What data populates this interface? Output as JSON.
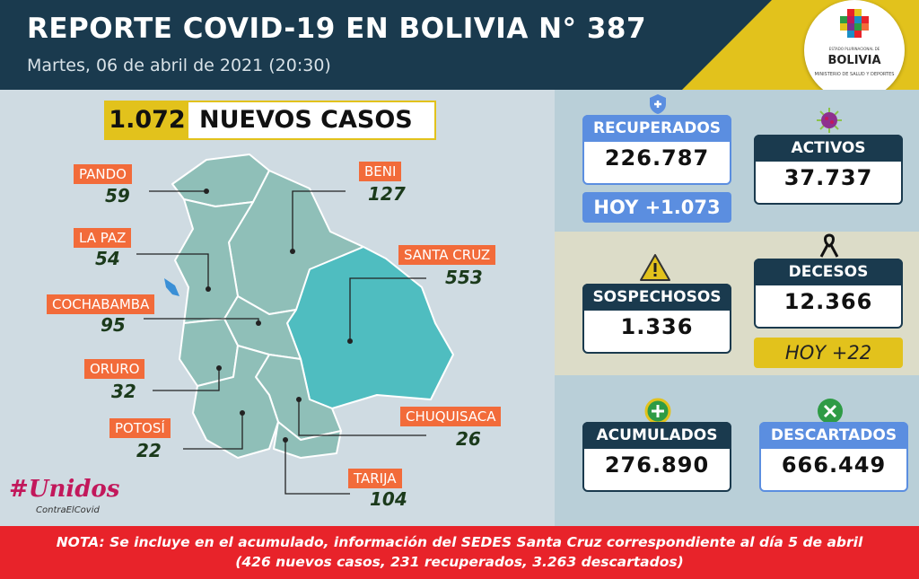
{
  "header": {
    "title": "REPORTE COVID-19 EN BOLIVIA N° 387",
    "subtitle": "Martes, 06 de abril de 2021 (20:30)"
  },
  "logo": {
    "caption": "ESTADO PLURINACIONAL DE",
    "country": "BOLIVIA",
    "ministry": "MINISTERIO DE SALUD Y DEPORTES"
  },
  "new_cases": {
    "value": "1.072",
    "label": "NUEVOS CASOS"
  },
  "departments": [
    {
      "name": "PANDO",
      "value": "59"
    },
    {
      "name": "BENI",
      "value": "127"
    },
    {
      "name": "LA PAZ",
      "value": "54"
    },
    {
      "name": "SANTA CRUZ",
      "value": "553"
    },
    {
      "name": "COCHABAMBA",
      "value": "95"
    },
    {
      "name": "ORURO",
      "value": "32"
    },
    {
      "name": "CHUQUISACA",
      "value": "26"
    },
    {
      "name": "POTOSÍ",
      "value": "22"
    },
    {
      "name": "TARIJA",
      "value": "104"
    }
  ],
  "stats": {
    "recuperados": {
      "label": "RECUPERADOS",
      "value": "226.787",
      "today": "HOY +1.073"
    },
    "activos": {
      "label": "ACTIVOS",
      "value": "37.737"
    },
    "sospechosos": {
      "label": "SOSPECHOSOS",
      "value": "1.336"
    },
    "decesos": {
      "label": "DECESOS",
      "value": "12.366",
      "today": "HOY +22"
    },
    "acumulados": {
      "label": "ACUMULADOS",
      "value": "276.890"
    },
    "descartados": {
      "label": "DESCARTADOS",
      "value": "666.449"
    }
  },
  "hashtag": {
    "main": "#Unidos",
    "sub": "ContraElCovid"
  },
  "note": {
    "line1": "NOTA: Se incluye en el acumulado, información del SEDES Santa Cruz correspondiente al día 5 de abril",
    "line2": "(426 nuevos casos, 231 recuperados, 3.263 descartados)"
  },
  "colors": {
    "navy": "#1a3a4e",
    "yellow": "#e2c21c",
    "orange": "#f26b3a",
    "map_teal": "#8fbfb8",
    "santa_cruz": "#4fbdc0",
    "blue_header": "#5b8ee0",
    "red_note": "#e8232a"
  }
}
